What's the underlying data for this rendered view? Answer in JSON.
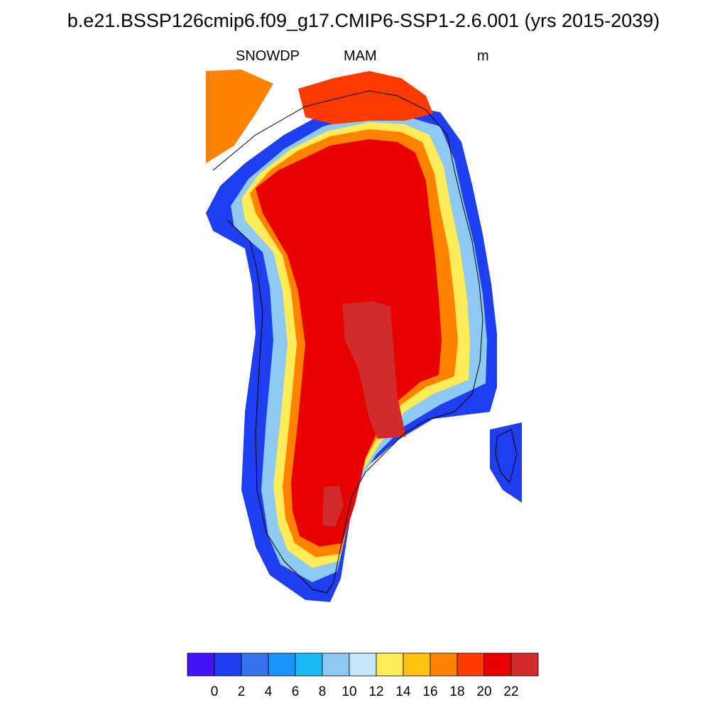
{
  "title": "b.e21.BSSP126cmip6.f09_g17.CMIP6-SSP1-2.6.001 (yrs 2015-2039)",
  "variable": "SNOWDP",
  "season": "MAM",
  "units": "m",
  "colorbar": {
    "colors": [
      "#4113f5",
      "#1f3ef0",
      "#3574eb",
      "#1a93fa",
      "#17baf6",
      "#8dc9f0",
      "#c4e6f7",
      "#ffea57",
      "#ffc20e",
      "#ff8200",
      "#ff3a00",
      "#e60000",
      "#d22b2b"
    ],
    "tick_labels": [
      "0",
      "2",
      "4",
      "6",
      "8",
      "10",
      "12",
      "14",
      "16",
      "18",
      "20",
      "22"
    ]
  },
  "chart_data": {
    "type": "heatmap",
    "variable": "SNOWDP",
    "season": "MAM",
    "units": "m",
    "levels": [
      0,
      2,
      4,
      6,
      8,
      10,
      12,
      14,
      16,
      18,
      20,
      22
    ],
    "level_colors": [
      "#4113f5",
      "#1f3ef0",
      "#3574eb",
      "#1a93fa",
      "#17baf6",
      "#8dc9f0",
      "#c4e6f7",
      "#ffea57",
      "#ffc20e",
      "#ff8200",
      "#ff3a00",
      "#e60000",
      "#d22b2b"
    ],
    "field_summary": {
      "interior_ice_sheet": ">20",
      "central_east_high": ">22",
      "west_and_south_coast": "0-2",
      "east_coast_fringe": "6-14"
    }
  }
}
